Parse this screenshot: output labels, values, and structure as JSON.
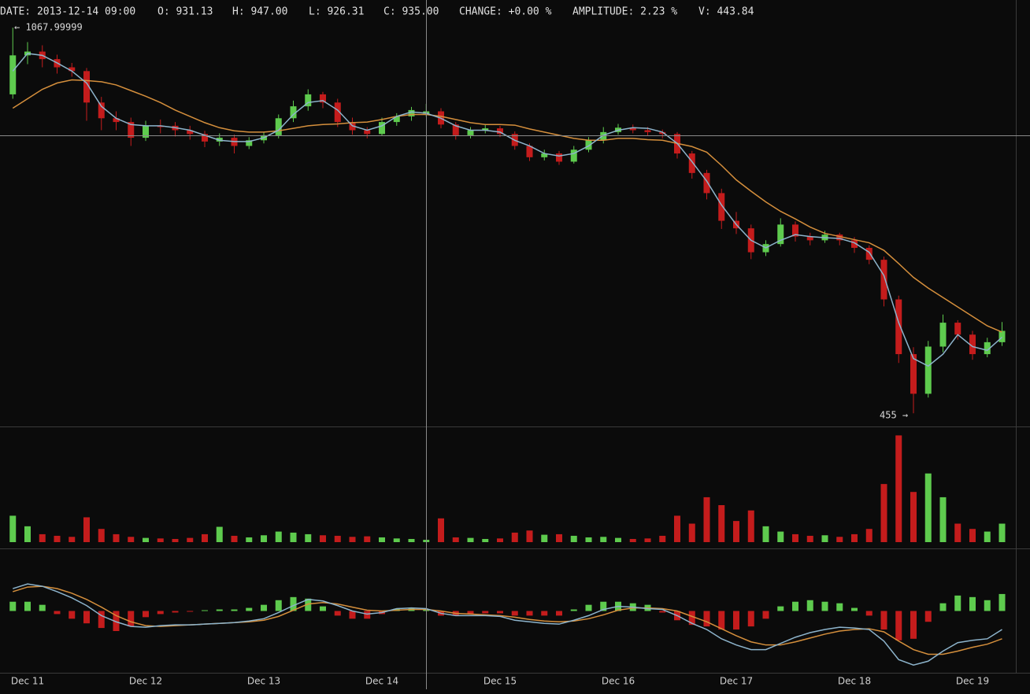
{
  "chart_data": {
    "type": "candlestick",
    "header": [
      "DATE: 2013-12-14 09:00",
      "O: 931.13",
      "H: 947.00",
      "L: 926.31",
      "C: 935.00",
      "CHANGE: +0.00 %",
      "AMPLITUDE: 2.23 %",
      "V: 443.84"
    ],
    "annotations": [
      "← 1067.99999",
      "455 →"
    ],
    "x_labels": [
      "Dec 11",
      "Dec 12",
      "Dec 13",
      "Dec 14",
      "Dec 15",
      "Dec 16",
      "Dec 17",
      "Dec 18",
      "Dec 19"
    ],
    "colors": {
      "up": "#5ecb4e",
      "down": "#c41c1c",
      "ma_fast": "#8db4cc",
      "ma_slow": "#d58f3c"
    },
    "ylim": [
      434,
      1112
    ],
    "candles": [
      [
        962,
        1068,
        955,
        1024
      ],
      [
        1024,
        1045,
        1010,
        1030
      ],
      [
        1030,
        1040,
        1005,
        1018
      ],
      [
        1018,
        1025,
        995,
        1005
      ],
      [
        1005,
        1012,
        990,
        999
      ],
      [
        999,
        1004,
        920,
        949
      ],
      [
        949,
        958,
        905,
        924
      ],
      [
        924,
        935,
        905,
        918
      ],
      [
        918,
        925,
        880,
        893
      ],
      [
        893,
        920,
        888,
        912
      ],
      [
        912,
        922,
        900,
        910
      ],
      [
        912,
        918,
        895,
        905
      ],
      [
        905,
        912,
        890,
        899
      ],
      [
        899,
        904,
        878,
        887
      ],
      [
        887,
        900,
        880,
        893
      ],
      [
        893,
        898,
        868,
        880
      ],
      [
        880,
        894,
        875,
        889
      ],
      [
        889,
        902,
        884,
        897
      ],
      [
        897,
        930,
        892,
        924
      ],
      [
        924,
        952,
        918,
        943
      ],
      [
        943,
        970,
        936,
        962
      ],
      [
        962,
        966,
        940,
        949
      ],
      [
        949,
        955,
        910,
        918
      ],
      [
        918,
        925,
        898,
        905
      ],
      [
        905,
        910,
        892,
        899
      ],
      [
        899,
        925,
        896,
        918
      ],
      [
        918,
        932,
        912,
        927
      ],
      [
        927,
        942,
        920,
        937
      ],
      [
        931.13,
        947,
        926.31,
        935
      ],
      [
        935,
        940,
        908,
        914
      ],
      [
        914,
        918,
        890,
        897
      ],
      [
        897,
        910,
        892,
        905
      ],
      [
        905,
        914,
        900,
        908
      ],
      [
        908,
        912,
        894,
        899
      ],
      [
        899,
        903,
        874,
        880
      ],
      [
        880,
        884,
        856,
        862
      ],
      [
        862,
        874,
        857,
        868
      ],
      [
        868,
        872,
        850,
        855
      ],
      [
        855,
        880,
        852,
        874
      ],
      [
        874,
        894,
        870,
        889
      ],
      [
        889,
        910,
        884,
        902
      ],
      [
        902,
        915,
        898,
        909
      ],
      [
        909,
        914,
        900,
        905
      ],
      [
        905,
        910,
        896,
        902
      ],
      [
        902,
        906,
        892,
        899
      ],
      [
        899,
        902,
        860,
        868
      ],
      [
        868,
        872,
        828,
        837
      ],
      [
        837,
        842,
        795,
        805
      ],
      [
        805,
        812,
        748,
        761
      ],
      [
        761,
        775,
        740,
        749
      ],
      [
        749,
        755,
        700,
        711
      ],
      [
        711,
        730,
        705,
        724
      ],
      [
        724,
        765,
        720,
        755
      ],
      [
        755,
        760,
        728,
        736
      ],
      [
        736,
        742,
        722,
        730
      ],
      [
        730,
        745,
        726,
        739
      ],
      [
        739,
        742,
        722,
        730
      ],
      [
        730,
        735,
        710,
        718
      ],
      [
        718,
        722,
        692,
        699
      ],
      [
        699,
        704,
        625,
        636
      ],
      [
        636,
        642,
        535,
        549
      ],
      [
        549,
        560,
        455,
        486
      ],
      [
        486,
        570,
        480,
        561
      ],
      [
        561,
        612,
        552,
        599
      ],
      [
        599,
        603,
        572,
        580
      ],
      [
        580,
        586,
        540,
        549
      ],
      [
        549,
        575,
        544,
        568
      ],
      [
        568,
        600,
        562,
        586
      ]
    ],
    "ma_fast": [
      999,
      1027,
      1024,
      1012,
      999,
      980,
      943,
      924,
      914,
      912,
      912,
      909,
      905,
      897,
      889,
      887,
      887,
      893,
      905,
      930,
      949,
      952,
      937,
      912,
      905,
      912,
      927,
      934,
      932,
      924,
      912,
      905,
      905,
      902,
      889,
      880,
      868,
      864,
      868,
      880,
      897,
      905,
      909,
      908,
      902,
      884,
      855,
      824,
      786,
      755,
      730,
      718,
      730,
      739,
      736,
      734,
      733,
      726,
      711,
      674,
      599,
      542,
      530,
      549,
      580,
      561,
      555,
      576
    ],
    "ma_slow": [
      940,
      955,
      970,
      980,
      985,
      984,
      982,
      977,
      968,
      959,
      949,
      937,
      927,
      917,
      909,
      904,
      902,
      902,
      904,
      908,
      912,
      914,
      915,
      917,
      918,
      922,
      927,
      930,
      930,
      927,
      922,
      917,
      914,
      914,
      913,
      907,
      902,
      897,
      892,
      889,
      889,
      892,
      892,
      890,
      889,
      884,
      879,
      870,
      849,
      826,
      808,
      791,
      776,
      764,
      751,
      741,
      736,
      731,
      726,
      714,
      693,
      671,
      654,
      639,
      624,
      609,
      594,
      584
    ],
    "volume": [
      5000,
      3000,
      1500,
      1200,
      1000,
      4700,
      2500,
      1500,
      1000,
      800,
      700,
      600,
      800,
      1500,
      2900,
      1200,
      900,
      1300,
      2000,
      1800,
      1500,
      1300,
      1200,
      1000,
      1100,
      900,
      700,
      600,
      443.84,
      4500,
      900,
      800,
      600,
      700,
      1800,
      2200,
      1400,
      1500,
      1200,
      900,
      1000,
      800,
      600,
      700,
      1200,
      5000,
      3500,
      8500,
      7000,
      4000,
      6000,
      3000,
      2000,
      1500,
      1200,
      1300,
      1000,
      1500,
      2500,
      11000,
      20200,
      9500,
      13000,
      8500,
      3500,
      2500,
      2000,
      3500
    ],
    "volume_ylim": [
      0,
      21000
    ],
    "macd": [
      29,
      35,
      32,
      25,
      17,
      7,
      -6,
      -14,
      -20,
      -21,
      -19,
      -18,
      -18,
      -17,
      -16,
      -15,
      -13,
      -10,
      -2,
      7,
      15,
      13,
      7,
      0,
      -4,
      -2,
      3,
      4,
      3,
      -3,
      -6,
      -6,
      -6,
      -7,
      -12,
      -14,
      -16,
      -17,
      -12,
      -6,
      2,
      6,
      5,
      3,
      2,
      -6,
      -16,
      -24,
      -36,
      -44,
      -50,
      -50,
      -42,
      -34,
      -28,
      -24,
      -21,
      -22,
      -24,
      -39,
      -63,
      -70,
      -65,
      -52,
      -41,
      -38,
      -36,
      -24
    ],
    "signal": [
      25,
      31,
      32,
      29,
      23,
      15,
      5,
      -6,
      -14,
      -19,
      -20,
      -19,
      -18,
      -17,
      -16,
      -15,
      -14,
      -12,
      -7,
      1,
      9,
      11,
      9,
      5,
      1,
      0,
      1,
      2,
      2,
      0,
      -3,
      -4,
      -5,
      -6,
      -8,
      -11,
      -13,
      -14,
      -13,
      -10,
      -5,
      1,
      4,
      4,
      3,
      0,
      -7,
      -14,
      -23,
      -32,
      -40,
      -44,
      -44,
      -40,
      -35,
      -30,
      -26,
      -24,
      -23,
      -27,
      -39,
      -50,
      -56,
      -56,
      -52,
      -47,
      -43,
      -36
    ],
    "histogram": [
      12,
      12,
      8,
      -4,
      -10,
      -16,
      -22,
      -26,
      -20,
      -8,
      -4,
      -2,
      -1,
      1,
      2,
      2,
      4,
      8,
      14,
      18,
      16,
      6,
      -6,
      -10,
      -10,
      -4,
      3,
      3,
      2,
      -6,
      -6,
      -4,
      -3,
      -3,
      -6,
      -6,
      -6,
      -6,
      2,
      8,
      12,
      12,
      10,
      8,
      -2,
      -12,
      -18,
      -20,
      -24,
      -24,
      -20,
      -10,
      6,
      12,
      14,
      12,
      10,
      4,
      -6,
      -24,
      -38,
      -36,
      -14,
      10,
      20,
      18,
      14,
      22
    ],
    "macd_ylim": [
      -80,
      80
    ]
  }
}
